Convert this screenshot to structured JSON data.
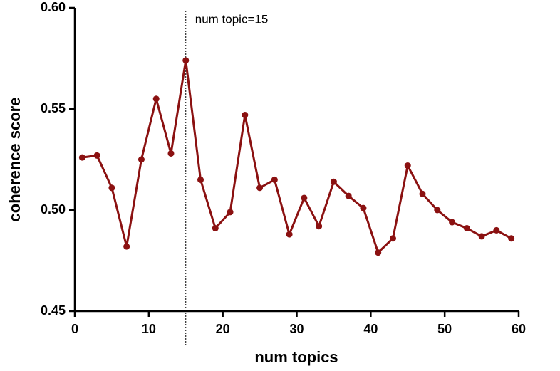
{
  "chart_data": {
    "type": "line",
    "x_label": "num topics",
    "y_label": "coherence score",
    "x": [
      1,
      3,
      5,
      7,
      9,
      11,
      13,
      15,
      17,
      19,
      21,
      23,
      25,
      27,
      29,
      31,
      33,
      35,
      37,
      39,
      41,
      43,
      45,
      47,
      49,
      51,
      53,
      55,
      57,
      59
    ],
    "series": [
      {
        "color": "#8b1111",
        "values": [
          0.526,
          0.527,
          0.511,
          0.482,
          0.525,
          0.555,
          0.528,
          0.574,
          0.515,
          0.491,
          0.499,
          0.547,
          0.511,
          0.515,
          0.488,
          0.506,
          0.492,
          0.514,
          0.507,
          0.501,
          0.479,
          0.486,
          0.522,
          0.508,
          0.5,
          0.494,
          0.491,
          0.487,
          0.49,
          0.486
        ]
      }
    ],
    "xlim": [
      0,
      60
    ],
    "xticks": [
      0,
      10,
      20,
      30,
      40,
      50,
      60
    ],
    "ylim": [
      0.45,
      0.6
    ],
    "yticks": [
      {
        "value": 0.45,
        "label": "0.45"
      },
      {
        "value": 0.5,
        "label": "0.50"
      },
      {
        "value": 0.55,
        "label": "0.55"
      },
      {
        "value": 0.6,
        "label": "0.60"
      }
    ],
    "vline": {
      "x": 15,
      "text": "num topic=15"
    }
  }
}
